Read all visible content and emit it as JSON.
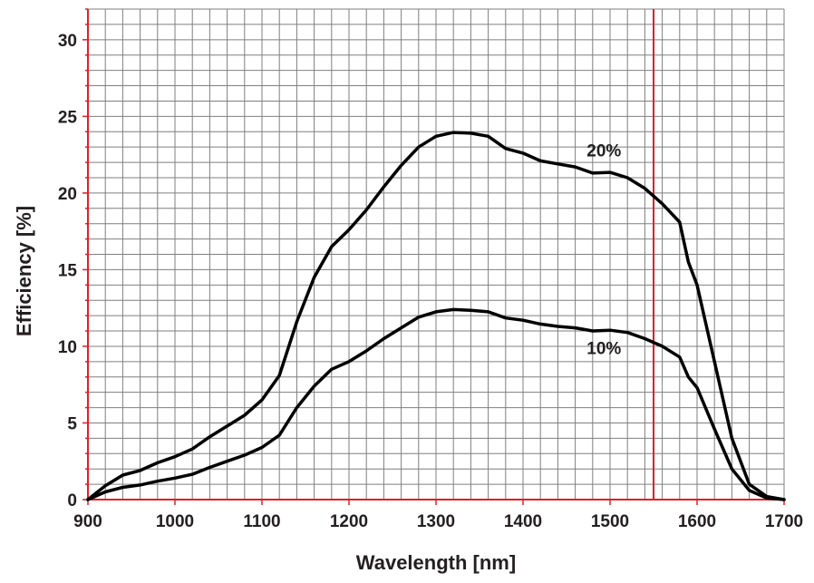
{
  "chart_data": {
    "type": "line",
    "title": "",
    "xlabel": "Wavelength [nm]",
    "ylabel": "Efficiency [%]",
    "xlim": [
      900,
      1700
    ],
    "ylim": [
      0,
      32
    ],
    "xticks": [
      900,
      1000,
      1100,
      1200,
      1300,
      1400,
      1500,
      1600,
      1700
    ],
    "yticks": [
      0,
      5,
      10,
      15,
      20,
      25,
      30
    ],
    "xtick_labels": [
      "900",
      "1000",
      "1100",
      "1200",
      "1300",
      "1400",
      "1500",
      "1600",
      "1700"
    ],
    "ytick_labels": [
      "0",
      "5",
      "10",
      "15",
      "20",
      "25",
      "30"
    ],
    "grid": true,
    "grid_minor_x": 20,
    "grid_minor_y": 1,
    "reference_line": {
      "x": 1550,
      "color": "#e31e24"
    },
    "axis_color": "#e31e24",
    "grid_color": "#7f7f7f",
    "line_color": "#000000",
    "series": [
      {
        "name": "20%",
        "label": "20%",
        "label_pos": [
          1493,
          22.4
        ],
        "x": [
          900,
          920,
          940,
          960,
          980,
          1000,
          1020,
          1040,
          1060,
          1080,
          1100,
          1120,
          1140,
          1160,
          1180,
          1200,
          1220,
          1240,
          1260,
          1280,
          1300,
          1320,
          1340,
          1360,
          1380,
          1400,
          1420,
          1440,
          1460,
          1480,
          1500,
          1520,
          1540,
          1560,
          1580,
          1590,
          1600,
          1620,
          1640,
          1660,
          1680,
          1700
        ],
        "y": [
          0,
          0.9,
          1.6,
          1.9,
          2.4,
          2.8,
          3.3,
          4.1,
          4.8,
          5.5,
          6.5,
          8.1,
          11.6,
          14.5,
          16.5,
          17.6,
          18.9,
          20.4,
          21.8,
          23.0,
          23.7,
          23.95,
          23.9,
          23.7,
          22.9,
          22.6,
          22.1,
          21.9,
          21.7,
          21.3,
          21.35,
          21.0,
          20.3,
          19.3,
          18.1,
          15.5,
          14.0,
          9.0,
          4.0,
          1.0,
          0.2,
          0
        ]
      },
      {
        "name": "10%",
        "label": "10%",
        "label_pos": [
          1493,
          9.5
        ],
        "x": [
          900,
          920,
          940,
          960,
          980,
          1000,
          1020,
          1040,
          1060,
          1080,
          1100,
          1120,
          1140,
          1160,
          1180,
          1200,
          1220,
          1240,
          1260,
          1280,
          1300,
          1320,
          1340,
          1360,
          1380,
          1400,
          1420,
          1440,
          1460,
          1480,
          1500,
          1520,
          1540,
          1560,
          1580,
          1590,
          1600,
          1620,
          1640,
          1660,
          1680,
          1700
        ],
        "y": [
          0,
          0.5,
          0.8,
          0.95,
          1.2,
          1.4,
          1.65,
          2.1,
          2.5,
          2.9,
          3.4,
          4.2,
          6.0,
          7.4,
          8.5,
          9.0,
          9.7,
          10.5,
          11.2,
          11.9,
          12.25,
          12.4,
          12.35,
          12.25,
          11.85,
          11.7,
          11.45,
          11.3,
          11.2,
          11.0,
          11.05,
          10.9,
          10.5,
          10.0,
          9.3,
          8.0,
          7.3,
          4.6,
          2.0,
          0.6,
          0.1,
          0
        ]
      }
    ]
  }
}
